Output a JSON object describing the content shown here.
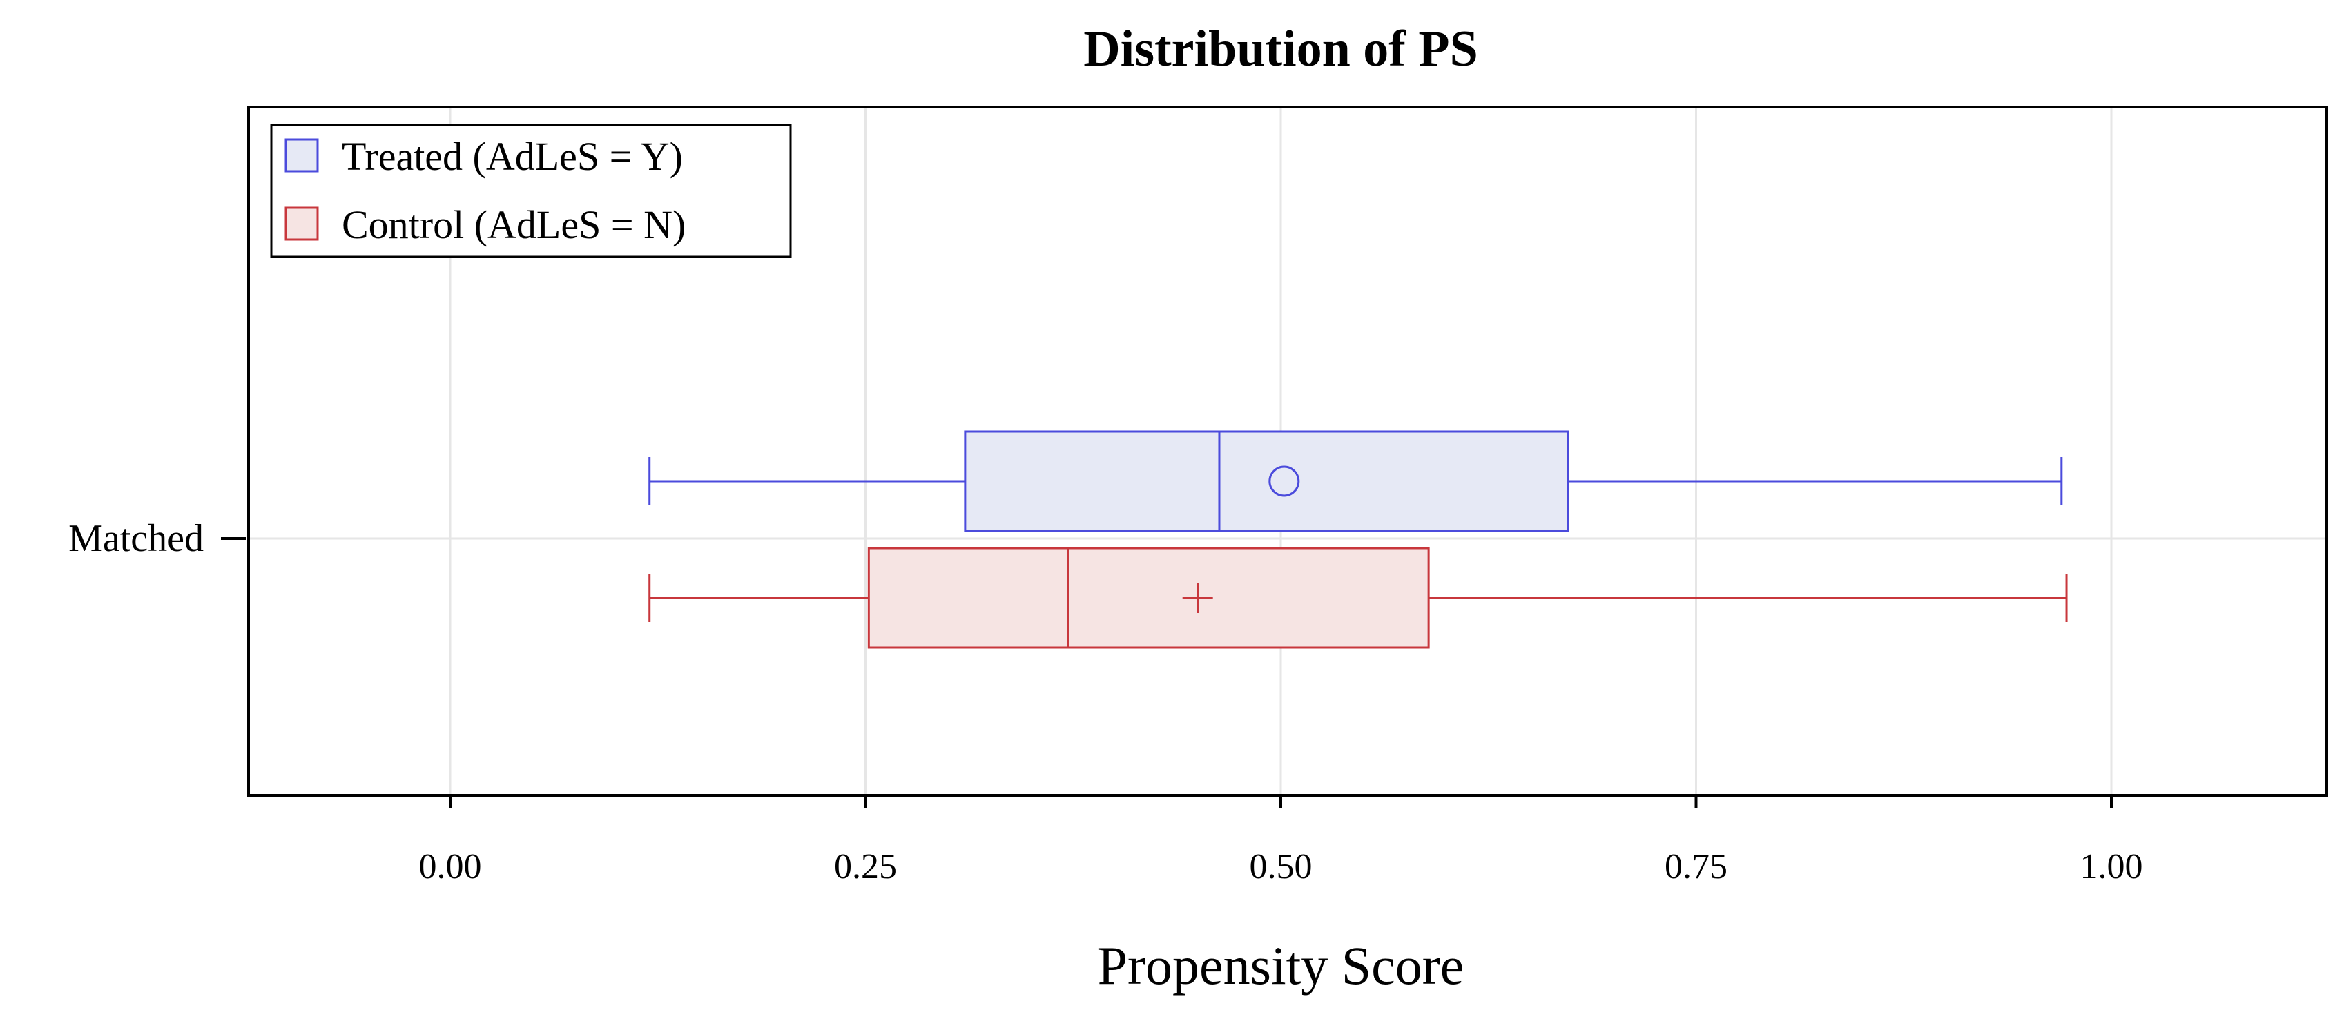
{
  "chart_data": {
    "type": "boxplot",
    "orientation": "horizontal",
    "title": "Distribution of PS",
    "xlabel": "Propensity Score",
    "ylabel": "",
    "xlim": [
      -0.12,
      1.12
    ],
    "xticks": [
      0.0,
      0.25,
      0.5,
      0.75,
      1.0
    ],
    "xtick_labels": [
      "0.00",
      "0.25",
      "0.50",
      "0.75",
      "1.00"
    ],
    "grid": true,
    "categories": [
      "Matched"
    ],
    "legend": {
      "position": "top-left",
      "entries": [
        "Treated (AdLeS = Y)",
        "Control (AdLeS = N)"
      ]
    },
    "series": [
      {
        "name": "Treated (AdLeS = Y)",
        "category": "Matched",
        "whisker_low": 0.12,
        "q1": 0.31,
        "median": 0.463,
        "q3": 0.673,
        "whisker_high": 0.97,
        "mean": 0.502,
        "mean_marker": "circle",
        "stroke_color": "#4b4bdc",
        "fill_color": "#e6e9f5"
      },
      {
        "name": "Control (AdLeS = N)",
        "category": "Matched",
        "whisker_low": 0.12,
        "q1": 0.252,
        "median": 0.372,
        "q3": 0.589,
        "whisker_high": 0.973,
        "mean": 0.45,
        "mean_marker": "plus",
        "stroke_color": "#c8373c",
        "fill_color": "#f6e4e3"
      }
    ]
  }
}
